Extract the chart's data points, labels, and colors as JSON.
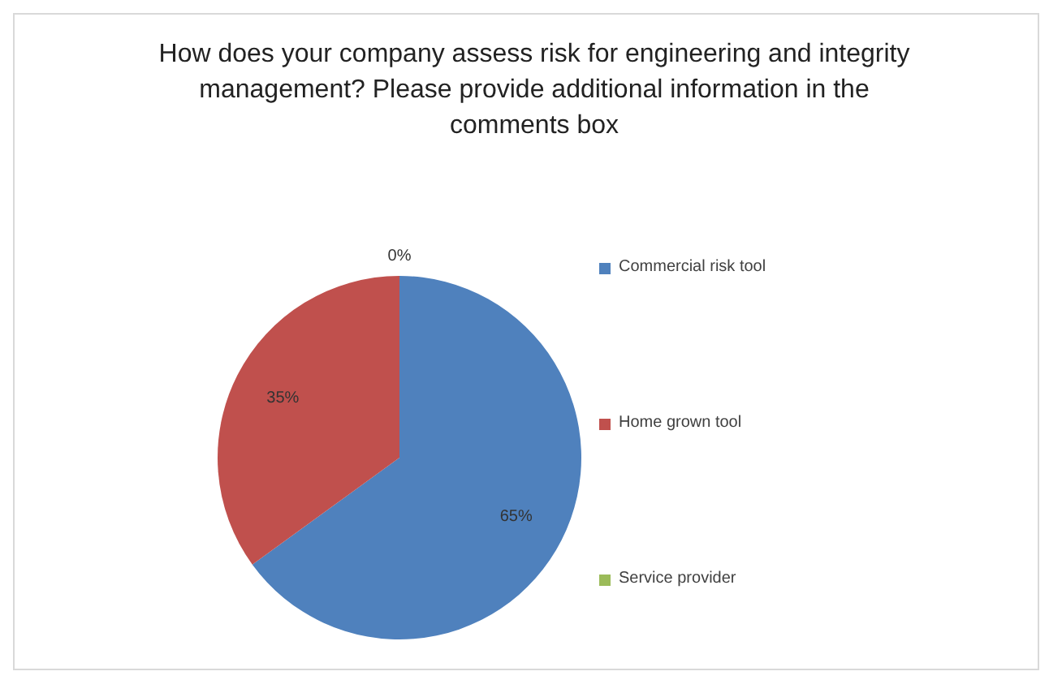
{
  "chart_data": {
    "type": "pie",
    "title": "How does your company assess risk for engineering and integrity management? Please provide additional information in the comments box",
    "categories": [
      "Commercial risk tool",
      "Home grown tool",
      "Service provider"
    ],
    "values": [
      65,
      35,
      0
    ],
    "colors": [
      "#4f81bd",
      "#c0504d",
      "#9bbb59"
    ],
    "value_labels": [
      "65%",
      "35%",
      "0%"
    ],
    "legend": "right"
  }
}
